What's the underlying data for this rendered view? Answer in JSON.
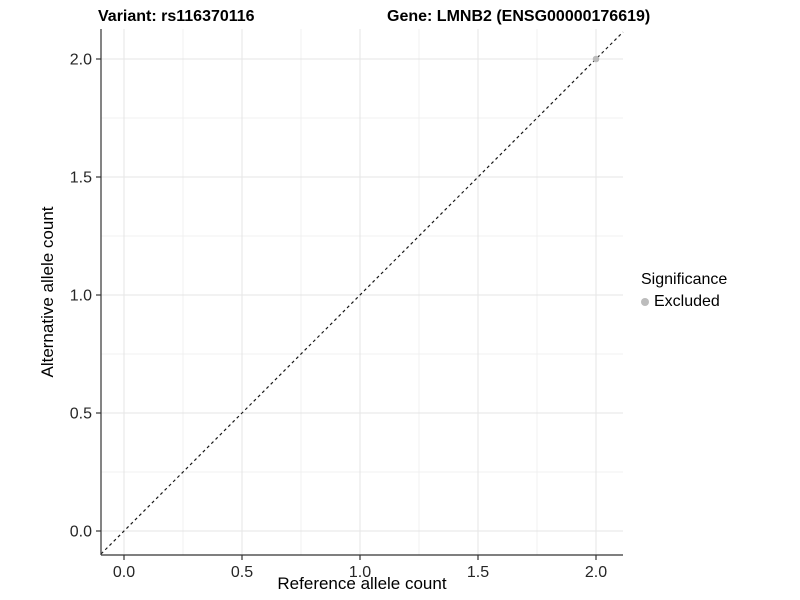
{
  "title": {
    "variant": "Variant: rs116370116",
    "gene": "Gene: LMNB2 (ENSG00000176619)"
  },
  "axes": {
    "x_label": "Reference allele count",
    "y_label": "Alternative allele count"
  },
  "legend": {
    "title": "Significance",
    "items": [
      {
        "label": "Excluded",
        "color": "#bcbcbc",
        "marker": "circle-icon"
      }
    ]
  },
  "chart_data": {
    "type": "scatter",
    "title": "Variant: rs116370116   Gene: LMNB2 (ENSG00000176619)",
    "xlabel": "Reference allele count",
    "ylabel": "Alternative allele count",
    "xlim": [
      -0.105,
      2.105
    ],
    "ylim": [
      -0.105,
      2.105
    ],
    "x_ticks": [
      0.0,
      0.5,
      1.0,
      1.5,
      2.0
    ],
    "y_ticks": [
      0.0,
      0.5,
      1.0,
      1.5,
      2.0
    ],
    "x_tick_labels": [
      "0.0",
      "0.5",
      "1.0",
      "1.5",
      "2.0"
    ],
    "y_tick_labels": [
      "0.0",
      "0.5",
      "1.0",
      "1.5",
      "2.0"
    ],
    "x_minor": [
      0.25,
      0.75,
      1.25,
      1.75
    ],
    "y_minor": [
      0.25,
      0.75,
      1.25,
      1.75
    ],
    "grid": "major and minor, light gray on white panel",
    "legend_position": "right",
    "reference_line": {
      "type": "identity y=x",
      "style": "dashed",
      "color": "#1a1a1a"
    },
    "series": [
      {
        "name": "Excluded",
        "color": "#bcbcbc",
        "points": [
          [
            2.0,
            2.0
          ]
        ]
      }
    ],
    "colors": {
      "point": "#bcbcbc",
      "grid_major": "#e5e5e5",
      "grid_minor": "#f0f0f0",
      "axis": "#333333",
      "tick_label": "#262626",
      "ref_line": "#1a1a1a"
    }
  }
}
